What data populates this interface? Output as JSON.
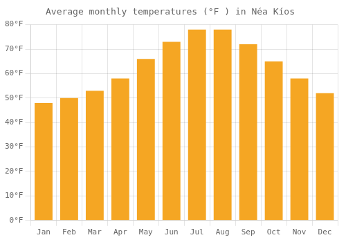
{
  "chart_data": {
    "type": "bar",
    "title": "Average monthly temperatures (°F ) in Néa Kíos",
    "categories": [
      "Jan",
      "Feb",
      "Mar",
      "Apr",
      "May",
      "Jun",
      "Jul",
      "Aug",
      "Sep",
      "Oct",
      "Nov",
      "Dec"
    ],
    "values": [
      48,
      50,
      53,
      58,
      66,
      73,
      78,
      78,
      72,
      65,
      58,
      52
    ],
    "color": "#F5A623",
    "ylim": [
      0,
      80
    ],
    "yticks": [
      {
        "value": 0,
        "label": "0°F"
      },
      {
        "value": 10,
        "label": "10°F"
      },
      {
        "value": 20,
        "label": "20°F"
      },
      {
        "value": 30,
        "label": "30°F"
      },
      {
        "value": 40,
        "label": "40°F"
      },
      {
        "value": 50,
        "label": "50°F"
      },
      {
        "value": 60,
        "label": "60°F"
      },
      {
        "value": 70,
        "label": "70°F"
      },
      {
        "value": 80,
        "label": "80°F"
      }
    ],
    "grid": true
  }
}
